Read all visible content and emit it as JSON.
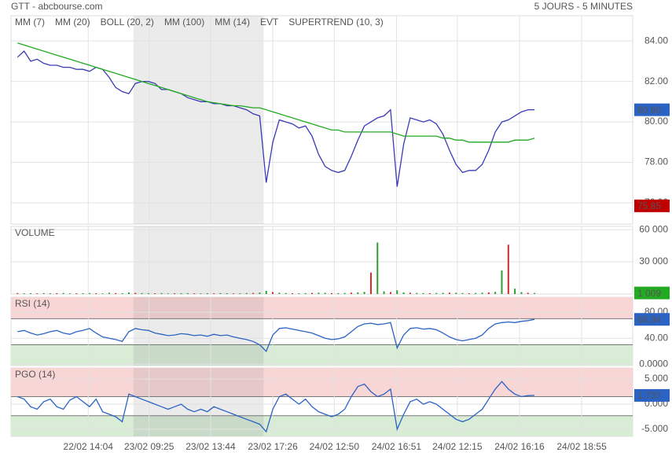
{
  "header": {
    "source": "GTT - abcbourse.com",
    "period": "5 JOURS - 5 MINUTES"
  },
  "x_axis": {
    "xlim": [
      -1,
      94
    ],
    "shade": [
      17.7,
      37.6
    ],
    "xticks": [
      {
        "value": 10.8,
        "label": "22/02 14:04"
      },
      {
        "value": 20.1,
        "label": "23/02 09:25"
      },
      {
        "value": 29.5,
        "label": "23/02 13:44"
      },
      {
        "value": 39.0,
        "label": "23/02 17:26"
      },
      {
        "value": 48.4,
        "label": "24/02 12:50"
      },
      {
        "value": 57.9,
        "label": "24/02 16:51"
      },
      {
        "value": 67.2,
        "label": "24/02 12:15"
      },
      {
        "value": 76.7,
        "label": "24/02 16:16"
      },
      {
        "value": 86.2,
        "label": "24/02 18:55"
      }
    ]
  },
  "chart_data": [
    {
      "type": "line",
      "ylim": [
        74.95,
        85.25
      ],
      "yticks": [
        {
          "value": 84,
          "label": "84.00"
        },
        {
          "value": 82,
          "label": "82.00"
        },
        {
          "value": 80,
          "label": "80.00"
        },
        {
          "value": 78,
          "label": "78.00"
        },
        {
          "value": 76,
          "label": "76.00"
        }
      ],
      "series": [
        {
          "name": "MM (7)",
          "color": "#3a3ab8",
          "values": [
            83.2,
            83.5,
            83.0,
            83.1,
            82.9,
            82.8,
            82.8,
            82.7,
            82.7,
            82.6,
            82.6,
            82.5,
            82.7,
            82.6,
            82.2,
            81.7,
            81.5,
            81.4,
            81.9,
            82.0,
            82.0,
            81.9,
            81.6,
            81.6,
            81.5,
            81.4,
            81.2,
            81.1,
            81.0,
            81.0,
            80.9,
            80.9,
            80.8,
            80.8,
            80.7,
            80.6,
            80.4,
            80.3,
            77.0,
            79.0,
            80.1,
            80.0,
            79.9,
            79.7,
            79.8,
            79.3,
            78.4,
            77.8,
            77.6,
            77.5,
            77.6,
            78.3,
            79.1,
            79.8,
            80.0,
            80.2,
            80.3,
            80.6,
            76.8,
            78.9,
            80.2,
            80.1,
            80.0,
            80.1,
            79.9,
            79.4,
            78.6,
            77.9,
            77.5,
            77.6,
            77.6,
            77.9,
            78.6,
            79.5,
            80.0,
            80.1,
            80.3,
            80.5,
            80.6,
            80.6
          ]
        },
        {
          "name": "MM (20)",
          "color": "#d42a2a"
        },
        {
          "name": "BOLL (20, 2)",
          "color": "#f0a040"
        },
        {
          "name": "MM (100)",
          "color": "#22aa22",
          "values": [
            83.9,
            83.8,
            83.7,
            83.6,
            83.5,
            83.4,
            83.3,
            83.2,
            83.1,
            83.0,
            82.9,
            82.8,
            82.7,
            82.6,
            82.5,
            82.4,
            82.3,
            82.2,
            82.1,
            82.0,
            81.9,
            81.8,
            81.7,
            81.6,
            81.5,
            81.4,
            81.3,
            81.2,
            81.1,
            81.0,
            80.95,
            80.9,
            80.85,
            80.8,
            80.8,
            80.75,
            80.7,
            80.7,
            80.6,
            80.5,
            80.4,
            80.3,
            80.2,
            80.1,
            80.0,
            79.9,
            79.8,
            79.7,
            79.6,
            79.6,
            79.5,
            79.5,
            79.5,
            79.5,
            79.5,
            79.5,
            79.5,
            79.5,
            79.4,
            79.3,
            79.3,
            79.3,
            79.3,
            79.3,
            79.3,
            79.2,
            79.2,
            79.1,
            79.1,
            79.0,
            79.0,
            79.0,
            79.0,
            79.0,
            79.0,
            79.0,
            79.1,
            79.1,
            79.1,
            79.2
          ]
        },
        {
          "name": "MM (14)",
          "color": "#444444"
        },
        {
          "name": "EVT",
          "color": "#111111"
        },
        {
          "name": "SUPERTREND (10, 3)",
          "color": "#a01818"
        }
      ],
      "markers": [
        {
          "value": 80.6,
          "label": "80.60",
          "color": "#2a63c4"
        },
        {
          "value": 75.85,
          "label": "75.85",
          "color": "#c00000"
        }
      ]
    },
    {
      "type": "bar",
      "title": "VOLUME",
      "title_color": "#22aa22",
      "ylim": [
        0,
        63000
      ],
      "yticks": [
        {
          "value": 60000,
          "label": "60 000"
        },
        {
          "value": 30000,
          "label": "30 000"
        }
      ],
      "series": [
        {
          "color": "#2e9e2e",
          "values": [
            900,
            700,
            800,
            600,
            900,
            700,
            800,
            1000,
            600,
            700,
            800,
            900,
            700,
            600,
            1200,
            900,
            800,
            1500,
            1100,
            900,
            800,
            700,
            900,
            600,
            700,
            800,
            900,
            700,
            600,
            800,
            700,
            900,
            800,
            600,
            700,
            900,
            1000,
            1400,
            3000,
            1800,
            1200,
            900,
            800,
            700,
            900,
            1000,
            1200,
            1100,
            900,
            800,
            1000,
            1300,
            1600,
            2000,
            20000,
            48000,
            2500,
            1800,
            3500,
            1500,
            1200,
            1000,
            900,
            800,
            1000,
            1100,
            1300,
            1200,
            900,
            800,
            1000,
            1200,
            1500,
            2000,
            22000,
            46000,
            5000,
            1800,
            1200,
            1009
          ]
        }
      ],
      "markers": [
        {
          "value": 1009,
          "label": "1 009",
          "color": "#22aa22"
        }
      ]
    },
    {
      "type": "line",
      "title": "RSI (14)",
      "title_color": "#2a63c4",
      "ylim": [
        -2,
        103
      ],
      "yticks": [
        {
          "value": 80,
          "label": "80.00"
        },
        {
          "value": 40,
          "label": "40.00"
        },
        {
          "value": 0,
          "label": "0.0000"
        }
      ],
      "zones": [
        {
          "from": 70,
          "to": 103,
          "color": "#f9d6d6"
        },
        {
          "from": -2,
          "to": 30,
          "color": "#d8ecd6"
        }
      ],
      "series": [
        {
          "color": "#2a63c4",
          "values": [
            50,
            52,
            48,
            45,
            47,
            50,
            52,
            48,
            46,
            50,
            52,
            55,
            48,
            42,
            40,
            38,
            35,
            50,
            55,
            53,
            52,
            48,
            46,
            44,
            45,
            47,
            46,
            44,
            45,
            43,
            46,
            44,
            45,
            42,
            40,
            38,
            35,
            30,
            20,
            45,
            55,
            56,
            54,
            52,
            50,
            48,
            44,
            40,
            38,
            39,
            42,
            50,
            58,
            62,
            63,
            61,
            62,
            64,
            25,
            45,
            55,
            56,
            54,
            55,
            53,
            48,
            42,
            38,
            36,
            38,
            40,
            45,
            55,
            62,
            64,
            65,
            64,
            66,
            67,
            68.94
          ]
        }
      ],
      "markers": [
        {
          "value": 68.94,
          "label": "68.94",
          "color": "#2a63c4"
        }
      ]
    },
    {
      "type": "line",
      "title": "PGO (14)",
      "title_color": "#2a63c4",
      "ylim": [
        -6.4,
        7.2
      ],
      "yticks": [
        {
          "value": 5,
          "label": "5.000"
        },
        {
          "value": 0,
          "label": "0.000"
        },
        {
          "value": -5,
          "label": "-5.000"
        }
      ],
      "zones": [
        {
          "from": 1.5,
          "to": 7.2,
          "color": "#f9d6d6"
        },
        {
          "from": -6.4,
          "to": -2.3,
          "color": "#d8ecd6"
        }
      ],
      "series": [
        {
          "color": "#2a63c4",
          "values": [
            1.5,
            1.0,
            -0.5,
            -1.0,
            0.5,
            1.0,
            -0.5,
            -1.0,
            0.8,
            1.5,
            0.5,
            -0.5,
            1.0,
            -1.5,
            -2.0,
            -2.5,
            -3.5,
            2.0,
            1.5,
            1.0,
            0.5,
            0,
            -0.5,
            -1.0,
            -0.5,
            0,
            -1.0,
            -1.5,
            -1.0,
            -1.5,
            -0.5,
            -1.0,
            -1.5,
            -2.0,
            -2.5,
            -3.0,
            -3.5,
            -4.0,
            -5.5,
            -1.0,
            1.5,
            2.0,
            1.0,
            0,
            1.0,
            -0.5,
            -1.5,
            -2.0,
            -2.5,
            -2.0,
            -1.0,
            1.5,
            3.5,
            4.0,
            2.5,
            1.5,
            2.0,
            3.0,
            -5.0,
            -2.0,
            0.5,
            1.0,
            0,
            0.5,
            0,
            -1.0,
            -2.0,
            -3.0,
            -3.5,
            -3.0,
            -2.0,
            -1.0,
            1.0,
            3.0,
            4.5,
            3.0,
            2.0,
            1.5,
            1.7,
            1.737
          ]
        }
      ],
      "markers": [
        {
          "value": 1.737,
          "label": "1.737",
          "color": "#2a63c4"
        }
      ]
    }
  ]
}
